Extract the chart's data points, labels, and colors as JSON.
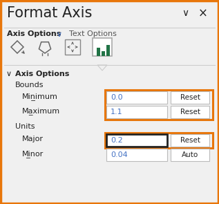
{
  "title": "Format Axis",
  "tab1": "Axis Options",
  "tab1_chevron": "∨",
  "tab2": "Text Options",
  "section1": "Axis Options",
  "subsection1": "Bounds",
  "label_minimum": "Min̲imum",
  "label_maximum": "Ma̲ximum",
  "val_minimum": "0.0",
  "val_maximum": "1.1",
  "subsection2": "Units",
  "label_major": "Major",
  "label_minor": "Mi̲nor",
  "val_major": "0.2",
  "val_minor": "0.04",
  "btn_reset": "Reset",
  "btn_auto": "Auto",
  "bg_color": "#f0f0f0",
  "orange_border": "#E8760A",
  "dark_border": "#222222",
  "input_bg": "#ffffff",
  "blue_text": "#4472C4",
  "dark_text": "#222222",
  "gray_text": "#555555",
  "green_bar": "#217346",
  "chevron_color": "#4472C4",
  "title_font_size": 15,
  "tab_font_size": 8,
  "label_font_size": 8,
  "input_font_size": 8,
  "btn_font_size": 7.5
}
